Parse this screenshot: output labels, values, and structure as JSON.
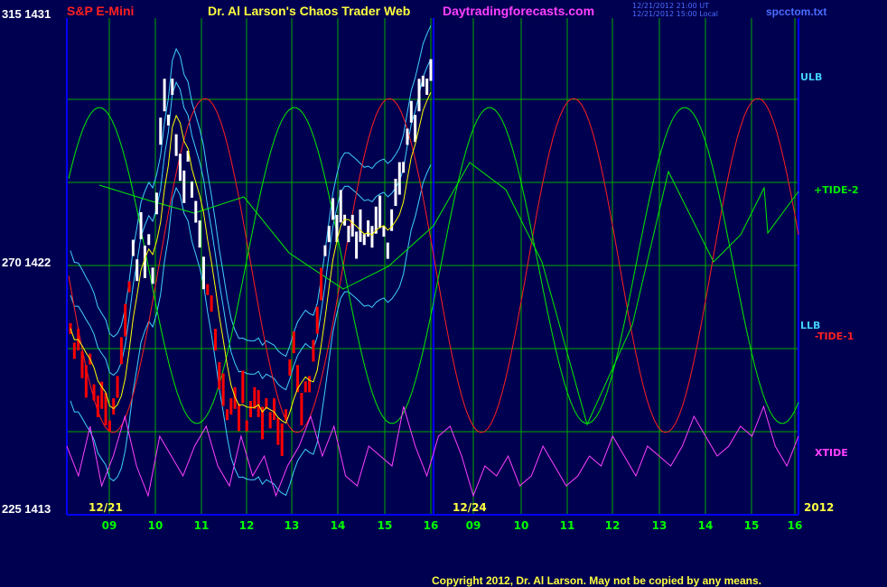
{
  "header": {
    "symbol": "S&P E-Mini",
    "title": "Dr. Al Larson's Chaos Trader Web",
    "site": "Daytradingforecasts.com",
    "time_ut": "12/21/2012 21:00 UT",
    "time_local": "12/21/2012 15:00 Local",
    "file": "spcctom.txt"
  },
  "colors": {
    "background": "#000050",
    "grid": "#00aa00",
    "axis": "#0000ff",
    "price_up": "#ffffff",
    "price_down": "#ff0000",
    "band": "#40d0ff",
    "tide_plus": "#00ee00",
    "tide_minus": "#ff2020",
    "xtide": "#ff40ff",
    "ma": "#ffff00"
  },
  "chart_data": {
    "type": "line",
    "y_left": {
      "labels": [
        "315 1431",
        "270 1422",
        "225 1413"
      ],
      "range": [
        1413,
        1431
      ]
    },
    "x": {
      "ticks": [
        "09",
        "10",
        "11",
        "12",
        "13",
        "14",
        "15",
        "16",
        "09",
        "10",
        "11",
        "12",
        "13",
        "14",
        "15",
        "16"
      ]
    },
    "date_labels": [
      "12/21",
      "12/24",
      "2012"
    ],
    "series": [
      {
        "name": "ULB",
        "color": "#40d0ff"
      },
      {
        "name": "+TIDE-2",
        "color": "#00ee00"
      },
      {
        "name": "LLB",
        "color": "#40d0ff"
      },
      {
        "name": "-TIDE-1",
        "color": "#ff2020"
      },
      {
        "name": "XTIDE",
        "color": "#ff40ff"
      }
    ],
    "price_bars": [
      1419.7,
      1418.9,
      1419.3,
      1418.4,
      1417.8,
      1418.6,
      1417.4,
      1416.9,
      1417.3,
      1416.8,
      1416.2,
      1416.9,
      1417.6,
      1418.9,
      1420.0,
      1421.2,
      1422.6,
      1421.8,
      1423.4,
      1422.1,
      1422.9,
      1421.6,
      1424.2,
      1426.8,
      1428.1,
      1427.2,
      1428.4,
      1426.3,
      1425.5,
      1424.8,
      1425.9,
      1424.7,
      1423.9,
      1423.1,
      1421.7,
      1421.1,
      1420.6,
      1419.3,
      1418.0,
      1417.5,
      1416.6,
      1416.9,
      1417.2,
      1416.5,
      1417.6,
      1416.2,
      1416.8,
      1417.2,
      1417.0,
      1416.3,
      1417.0,
      1416.4,
      1416.8,
      1416.0,
      1415.7,
      1416.6,
      1418.3,
      1419.2,
      1417.9,
      1416.8,
      1417.6,
      1417.7,
      1418.9,
      1420.0,
      1421.3,
      1422.5,
      1423.1,
      1424.0,
      1423.3,
      1424.1,
      1423.6,
      1423.1,
      1423.4,
      1422.7,
      1423.4,
      1422.9,
      1423.3,
      1423.0,
      1423.6,
      1423.9,
      1423.2,
      1422.5,
      1423.6,
      1424.6,
      1425.1,
      1425.5,
      1426.6,
      1427.5,
      1426.9,
      1428.1,
      1428.6,
      1428.4,
      1429.0
    ],
    "xtide_values": [
      0.6,
      0.3,
      0.8,
      0.2,
      0.5,
      0.9,
      0.4,
      0.1,
      0.7,
      0.5,
      0.3,
      0.6,
      0.8,
      0.4,
      0.2,
      0.7,
      0.3,
      0.5,
      0.1,
      0.4,
      0.6,
      0.9,
      0.5,
      0.8,
      0.3,
      0.2,
      0.6,
      0.5,
      0.4,
      1.0,
      0.6,
      0.3,
      0.7,
      0.8,
      0.5,
      0.1,
      0.4,
      0.3,
      0.5,
      0.2,
      0.3,
      0.6,
      0.4,
      0.2,
      0.3,
      0.5,
      0.4,
      0.7,
      0.5,
      0.3,
      0.6,
      0.5,
      0.4,
      0.6,
      0.9,
      0.7,
      0.5,
      0.6,
      0.8,
      0.7,
      1.0,
      0.6,
      0.4,
      0.7
    ]
  },
  "copyright": "Copyright 2012, Dr. Al Larson. May not be copied by any means."
}
